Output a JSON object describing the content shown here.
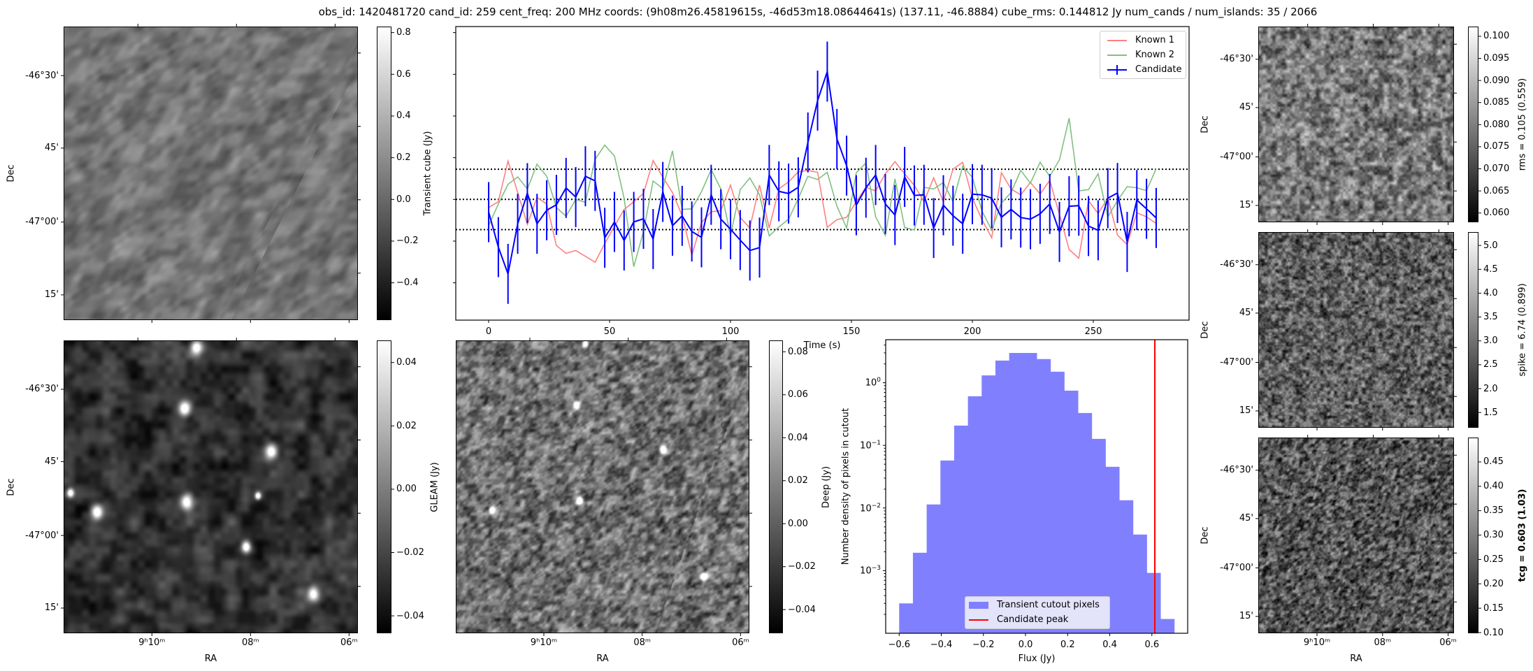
{
  "title": "obs_id: 1420481720 cand_id: 259 cent_freq: 200 MHz coords: (9h08m26.45819615s, -46d53m18.08644641s) (137.11, -46.8884) cube_rms: 0.144812 Jy num_cands / num_islands: 35 / 2066",
  "sky_axes": {
    "dec_label": "Dec",
    "ra_label": "RA",
    "dec_ticks": [
      "-46°30'",
      "45'",
      "-47°00'",
      "15'"
    ],
    "ra_ticks": [
      "9ʰ10ᵐ",
      "08ᵐ",
      "06ᵐ"
    ]
  },
  "panels": {
    "transient": {
      "colorbar_label": "Transient cube (Jy)",
      "vmin": -0.579,
      "vmax": 0.829,
      "ticks": [
        {
          "v": 0.8,
          "label": "0.8"
        },
        {
          "v": 0.6,
          "label": "0.6"
        },
        {
          "v": 0.4,
          "label": "0.4"
        },
        {
          "v": 0.2,
          "label": "0.2"
        },
        {
          "v": 0.0,
          "label": "0.0"
        },
        {
          "v": -0.2,
          "label": "−0.2"
        },
        {
          "v": -0.4,
          "label": "−0.4"
        }
      ]
    },
    "gleam": {
      "colorbar_label": "GLEAM (Jy)",
      "vmin": -0.0455,
      "vmax": 0.047,
      "ticks": [
        {
          "v": 0.04,
          "label": "0.04"
        },
        {
          "v": 0.02,
          "label": "0.02"
        },
        {
          "v": 0.0,
          "label": "0.00"
        },
        {
          "v": -0.02,
          "label": "−0.02"
        },
        {
          "v": -0.04,
          "label": "−0.04"
        }
      ]
    },
    "deep": {
      "colorbar_label": "Deep (Jy)",
      "vmin": -0.051,
      "vmax": 0.0853,
      "ticks": [
        {
          "v": 0.08,
          "label": "0.08"
        },
        {
          "v": 0.06,
          "label": "0.06"
        },
        {
          "v": 0.04,
          "label": "0.04"
        },
        {
          "v": 0.02,
          "label": "0.02"
        },
        {
          "v": 0.0,
          "label": "0.00"
        },
        {
          "v": -0.02,
          "label": "−0.02"
        },
        {
          "v": -0.04,
          "label": "−0.04"
        }
      ]
    },
    "rms": {
      "colorbar_label": "rms = 0.105 (0.559)",
      "vmin": 0.0579,
      "vmax": 0.1022,
      "ticks": [
        {
          "v": 0.1,
          "label": "0.100"
        },
        {
          "v": 0.095,
          "label": "0.095"
        },
        {
          "v": 0.09,
          "label": "0.090"
        },
        {
          "v": 0.085,
          "label": "0.085"
        },
        {
          "v": 0.08,
          "label": "0.080"
        },
        {
          "v": 0.075,
          "label": "0.075"
        },
        {
          "v": 0.07,
          "label": "0.070"
        },
        {
          "v": 0.065,
          "label": "0.065"
        },
        {
          "v": 0.06,
          "label": "0.060"
        }
      ]
    },
    "spike": {
      "colorbar_label": "spike = 6.74 (0.899)",
      "vmin": 1.18,
      "vmax": 5.28,
      "ticks": [
        {
          "v": 5.0,
          "label": "5.0"
        },
        {
          "v": 4.5,
          "label": "4.5"
        },
        {
          "v": 4.0,
          "label": "4.0"
        },
        {
          "v": 3.5,
          "label": "3.5"
        },
        {
          "v": 3.0,
          "label": "3.0"
        },
        {
          "v": 2.5,
          "label": "2.5"
        },
        {
          "v": 2.0,
          "label": "2.0"
        },
        {
          "v": 1.5,
          "label": "1.5"
        }
      ]
    },
    "tcg": {
      "colorbar_label": "tcg = 0.603 (1.03)",
      "vmin": 0.0986,
      "vmax": 0.5,
      "ticks": [
        {
          "v": 0.45,
          "label": "0.45"
        },
        {
          "v": 0.4,
          "label": "0.40"
        },
        {
          "v": 0.35,
          "label": "0.35"
        },
        {
          "v": 0.3,
          "label": "0.30"
        },
        {
          "v": 0.25,
          "label": "0.25"
        },
        {
          "v": 0.2,
          "label": "0.20"
        },
        {
          "v": 0.15,
          "label": "0.15"
        },
        {
          "v": 0.1,
          "label": "0.10"
        }
      ]
    }
  },
  "chart_data": [
    {
      "type": "line",
      "title": "",
      "xlabel": "Time (s)",
      "ylabel": "",
      "xlim": [
        -13.6,
        289.6
      ],
      "ylim": [
        -0.579,
        0.829
      ],
      "x_ticks": [
        {
          "v": 0,
          "label": "0"
        },
        {
          "v": 50,
          "label": "50"
        },
        {
          "v": 100,
          "label": "100"
        },
        {
          "v": 150,
          "label": "150"
        },
        {
          "v": 200,
          "label": "200"
        },
        {
          "v": 250,
          "label": "250"
        }
      ],
      "y_ticks": [
        0.8,
        0.6,
        0.4,
        0.2,
        0.0,
        -0.2,
        -0.4
      ],
      "hlines": [
        0.144812,
        0.0,
        -0.144812
      ],
      "legend": "top-right",
      "x_start": 0,
      "x_step": 4,
      "series": [
        {
          "name": "Known 1",
          "color": "#ff8080",
          "values": [
            -0.039,
            -0.011,
            0.184,
            0.033,
            -0.12,
            0.009,
            -0.022,
            -0.221,
            -0.259,
            -0.245,
            -0.273,
            -0.301,
            -0.212,
            -0.128,
            -0.048,
            -0.011,
            0.028,
            0.186,
            0.106,
            0.033,
            -0.078,
            -0.268,
            -0.111,
            -0.059,
            -0.054,
            0.069,
            -0.087,
            -0.137,
            0.069,
            -0.137,
            0.05,
            0.084,
            0.132,
            0.139,
            0.13,
            -0.134,
            -0.097,
            -0.086,
            -0.011,
            0.058,
            0.041,
            0.123,
            0.181,
            0.123,
            0.067,
            -0.011,
            0.104,
            -0.011,
            0.145,
            0.178,
            0.006,
            -0.098,
            -0.184,
            0.128,
            0.05,
            0.022,
            0.081,
            0.026,
            0.091,
            -0.072,
            -0.24,
            -0.282,
            -0.006,
            -0.067,
            0.006,
            -0.171,
            -0.217,
            -0.064,
            -0.084,
            -0.115
          ]
        },
        {
          "name": "Known 2",
          "color": "#80c080",
          "values": [
            -0.125,
            -0.022,
            0.072,
            0.108,
            0.05,
            0.169,
            0.111,
            -0.039,
            -0.081,
            0.0,
            -0.014,
            0.192,
            0.26,
            0.208,
            0.006,
            -0.323,
            -0.154,
            0.088,
            0.052,
            0.233,
            -0.048,
            -0.045,
            0.037,
            0.143,
            0.05,
            -0.173,
            0.047,
            0.103,
            0.022,
            -0.175,
            -0.132,
            -0.095,
            0.003,
            0.111,
            0.095,
            0.13,
            -0.033,
            -0.137,
            0.128,
            0.175,
            -0.084,
            -0.173,
            0.099,
            -0.134,
            -0.147,
            0.058,
            0.05,
            0.081,
            -0.011,
            0.159,
            0.106,
            -0.056,
            -0.148,
            -0.017,
            0.033,
            0.139,
            0.078,
            0.178,
            0.111,
            0.19,
            0.39,
            0.041,
            0.047,
            0.123,
            -0.084,
            -0.006,
            0.061,
            0.056,
            0.042,
            0.147
          ]
        },
        {
          "name": "Candidate",
          "color": "#0000ff",
          "yerr": 0.144,
          "values": [
            -0.061,
            -0.229,
            -0.357,
            -0.117,
            0.03,
            -0.117,
            -0.052,
            -0.026,
            0.055,
            0.011,
            0.111,
            0.089,
            -0.184,
            -0.108,
            -0.197,
            -0.108,
            -0.093,
            -0.19,
            0.036,
            -0.126,
            -0.079,
            -0.154,
            -0.182,
            0.022,
            -0.095,
            -0.143,
            -0.195,
            -0.245,
            -0.231,
            0.117,
            0.039,
            0.028,
            0.058,
            0.273,
            0.474,
            0.613,
            0.29,
            0.162,
            -0.028,
            0.056,
            0.117,
            -0.022,
            -0.075,
            0.108,
            0.019,
            0.022,
            -0.137,
            -0.028,
            -0.078,
            -0.117,
            0.025,
            0.022,
            0.006,
            -0.086,
            -0.048,
            -0.087,
            -0.095,
            -0.069,
            -0.022,
            -0.156,
            -0.033,
            -0.03,
            -0.128,
            -0.148,
            0.006,
            0.031,
            -0.204,
            -0.003,
            -0.045,
            -0.089
          ]
        }
      ]
    },
    {
      "type": "bar",
      "title": "",
      "xlabel": "Flux (Jy)",
      "ylabel": "Number density of pixels in cutout",
      "yscale": "log",
      "xlim": [
        -0.664,
        0.77
      ],
      "ylim": [
        0.0001,
        4.87
      ],
      "x_ticks": [
        {
          "v": -0.6,
          "label": "−0.6"
        },
        {
          "v": -0.4,
          "label": "−0.4"
        },
        {
          "v": -0.2,
          "label": "−0.2"
        },
        {
          "v": 0.0,
          "label": "0.0"
        },
        {
          "v": 0.2,
          "label": "0.2"
        },
        {
          "v": 0.4,
          "label": "0.4"
        },
        {
          "v": 0.6,
          "label": "0.6"
        }
      ],
      "y_ticks": [
        {
          "v": 1,
          "base": "10",
          "exp": "0"
        },
        {
          "v": 0.1,
          "base": "10",
          "exp": "−1"
        },
        {
          "v": 0.01,
          "base": "10",
          "exp": "−2"
        },
        {
          "v": 0.001,
          "base": "10",
          "exp": "−3"
        }
      ],
      "bin_range": [
        -0.6,
        0.706
      ],
      "values": [
        0.0003,
        0.00193,
        0.0114,
        0.0573,
        0.207,
        0.608,
        1.31,
        2.26,
        2.99,
        2.99,
        2.39,
        1.5,
        0.748,
        0.329,
        0.127,
        0.0455,
        0.0133,
        0.00377,
        0.00092,
        0.000169
      ],
      "bar_color": "#8080ff",
      "vline": {
        "x": 0.614,
        "color": "#ff0000"
      },
      "legend": "bottom-center",
      "legend_entries": [
        "Transient cutout pixels",
        "Candidate peak"
      ]
    }
  ]
}
